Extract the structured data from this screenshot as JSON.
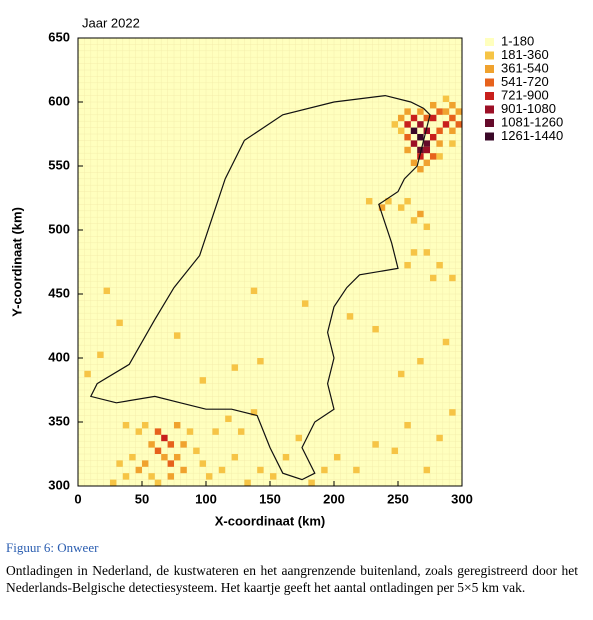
{
  "chart_data": {
    "type": "heatmap",
    "title": "Jaar 2022",
    "xlabel": "X-coordinaat (km)",
    "ylabel": "Y-coordinaat (km)",
    "xlim": [
      0,
      300
    ],
    "ylim": [
      300,
      650
    ],
    "xticks": [
      0,
      50,
      100,
      150,
      200,
      250,
      300
    ],
    "yticks": [
      300,
      350,
      400,
      450,
      500,
      550,
      600,
      650
    ],
    "legend_position": "right",
    "classes": [
      {
        "min": 1,
        "max": 180,
        "label": "1-180",
        "color": "#ffffbe"
      },
      {
        "min": 181,
        "max": 360,
        "label": "181-360",
        "color": "#f6c445"
      },
      {
        "min": 361,
        "max": 540,
        "label": "361-540",
        "color": "#f0a22e"
      },
      {
        "min": 541,
        "max": 720,
        "label": "541-720",
        "color": "#e7621c"
      },
      {
        "min": 721,
        "max": 900,
        "label": "721-900",
        "color": "#c81f1c"
      },
      {
        "min": 901,
        "max": 1080,
        "label": "901-1080",
        "color": "#9c0f26"
      },
      {
        "min": 1081,
        "max": 1260,
        "label": "1081-1260",
        "color": "#650a2a"
      },
      {
        "min": 1261,
        "max": 1440,
        "label": "1261-1440",
        "color": "#3a0828"
      }
    ],
    "cells": {
      "x": [
        260,
        265,
        270,
        265,
        260,
        270,
        275,
        255,
        260,
        265,
        270,
        265,
        275,
        280,
        285,
        290,
        285,
        280,
        270,
        255,
        250,
        255,
        295,
        290,
        280,
        275,
        270,
        265,
        260,
        255,
        295,
        290,
        285,
        275,
        265,
        250,
        245,
        290,
        280,
        255,
        265,
        260,
        270,
        250,
        235,
        240,
        225,
        260,
        255,
        270,
        280,
        290,
        275,
        60,
        65,
        70,
        55,
        60,
        65,
        70,
        75,
        50,
        45,
        55,
        40,
        35,
        30,
        80,
        85,
        90,
        95,
        100,
        110,
        120,
        130,
        140,
        150,
        45,
        35,
        75,
        80,
        25,
        60,
        70,
        50,
        105,
        115,
        125,
        135,
        160,
        170,
        180,
        190,
        200,
        215,
        230,
        245,
        255,
        270,
        280,
        290,
        250,
        265,
        285,
        230,
        210,
        175,
        135,
        140,
        120,
        95,
        15,
        30,
        20,
        75,
        5
      ],
      "y": [
        575,
        570,
        565,
        560,
        565,
        575,
        570,
        580,
        585,
        580,
        560,
        555,
        585,
        590,
        580,
        585,
        590,
        575,
        585,
        570,
        585,
        590,
        590,
        575,
        565,
        555,
        550,
        545,
        550,
        560,
        580,
        595,
        600,
        595,
        590,
        575,
        580,
        565,
        555,
        520,
        510,
        505,
        500,
        515,
        515,
        520,
        520,
        480,
        470,
        480,
        470,
        460,
        460,
        340,
        335,
        330,
        330,
        325,
        320,
        315,
        320,
        315,
        310,
        305,
        320,
        305,
        315,
        330,
        340,
        325,
        315,
        305,
        310,
        320,
        300,
        310,
        305,
        340,
        345,
        345,
        310,
        300,
        300,
        305,
        345,
        340,
        350,
        340,
        355,
        320,
        335,
        300,
        310,
        320,
        310,
        330,
        325,
        345,
        310,
        335,
        355,
        385,
        395,
        410,
        420,
        430,
        440,
        450,
        395,
        390,
        380,
        400,
        425,
        450,
        415,
        385
      ],
      "values": [
        1350,
        1350,
        1170,
        1170,
        990,
        990,
        810,
        810,
        810,
        990,
        990,
        810,
        810,
        630,
        810,
        630,
        450,
        630,
        630,
        630,
        450,
        450,
        450,
        450,
        450,
        630,
        450,
        450,
        450,
        450,
        630,
        450,
        270,
        450,
        450,
        270,
        270,
        270,
        270,
        270,
        450,
        270,
        270,
        270,
        450,
        270,
        270,
        270,
        270,
        270,
        270,
        270,
        270,
        630,
        810,
        630,
        450,
        630,
        450,
        630,
        450,
        450,
        450,
        270,
        270,
        270,
        270,
        450,
        270,
        270,
        270,
        270,
        270,
        270,
        270,
        270,
        270,
        270,
        270,
        450,
        450,
        270,
        270,
        450,
        270,
        270,
        270,
        270,
        270,
        270,
        270,
        270,
        270,
        270,
        270,
        270,
        270,
        270,
        270,
        270,
        270,
        270,
        270,
        270,
        270,
        270,
        270,
        270,
        270,
        270,
        270,
        270,
        270,
        270,
        270,
        270
      ]
    },
    "figure_label": "Figuur 6: Onweer",
    "caption": "Ontladingen in Nederland, de kustwateren en het aangrenzende buitenland, zoals geregistreerd door het Nederlands-Belgische detectiesysteem. Het kaartje geeft het aantal ontladingen per 5×5 km vak."
  }
}
